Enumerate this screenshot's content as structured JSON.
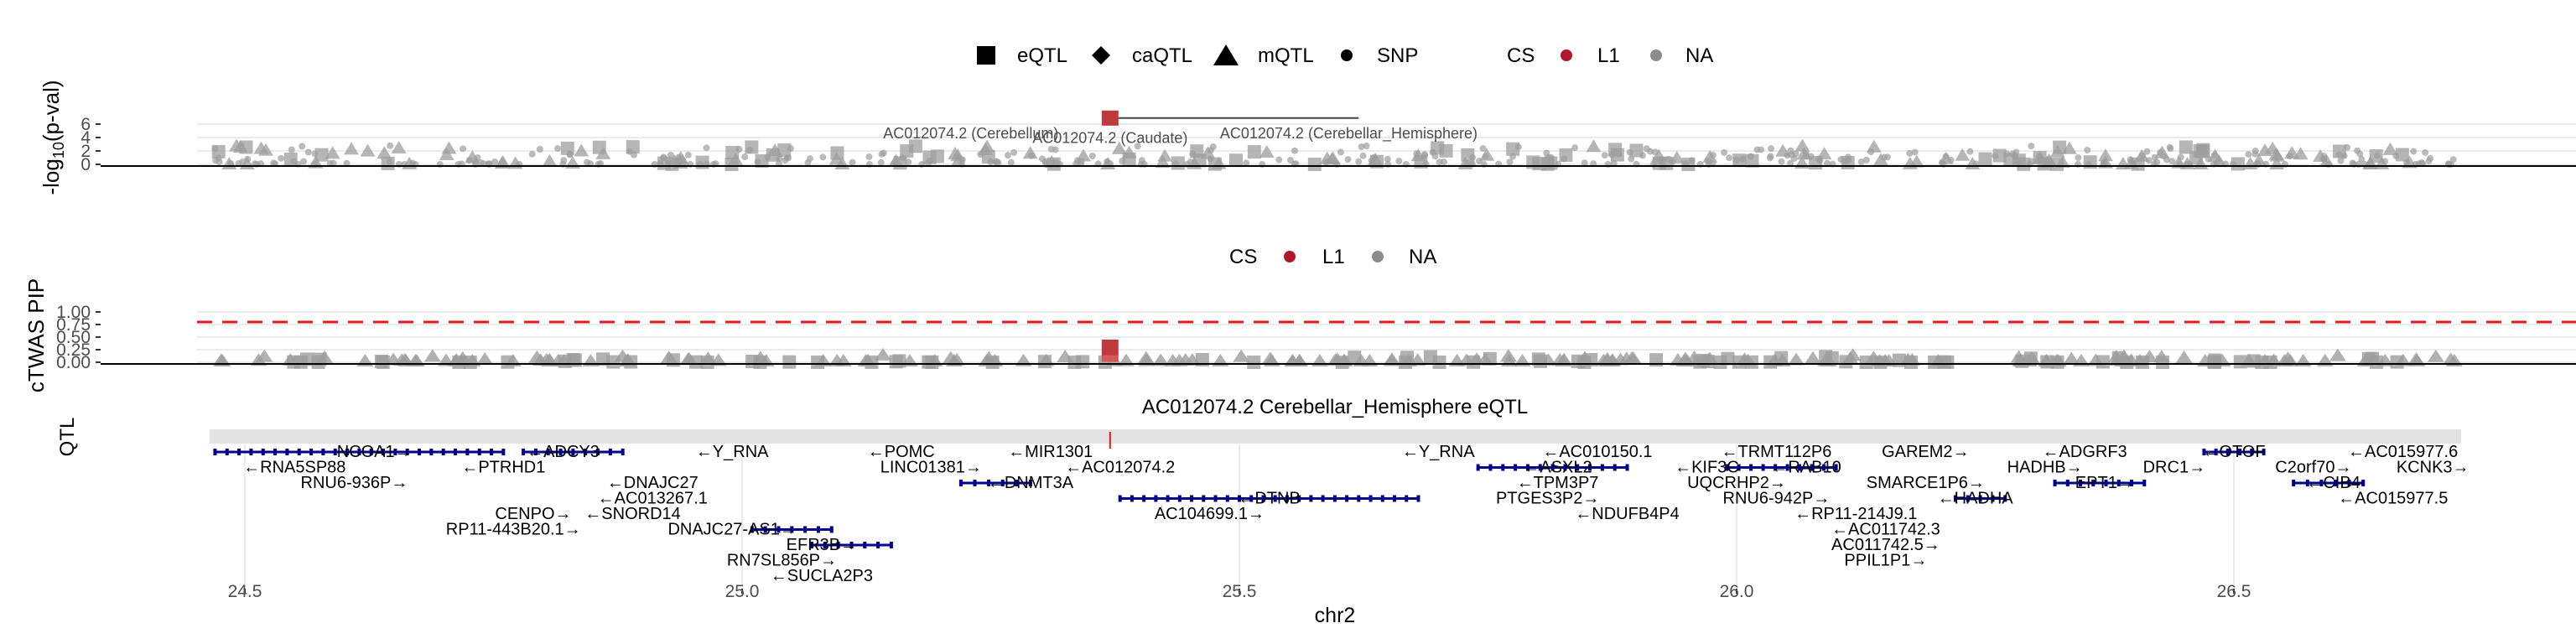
{
  "chart_data": [
    {
      "type": "scatter",
      "panel": "qtl",
      "ylabel_prefix": "-log",
      "ylabel_sub": "10",
      "ylabel_suffix": "(p-val)",
      "yticks": [
        "0",
        "2",
        "4",
        "6"
      ],
      "ylim": [
        0,
        7.5
      ],
      "xlim": [
        24.47,
        26.73
      ],
      "legend": {
        "placement": "top-center",
        "shape_title": "",
        "shape_items": [
          {
            "label": "eQTL",
            "shape": "square"
          },
          {
            "label": "caQTL",
            "shape": "diamond"
          },
          {
            "label": "mQTL",
            "shape": "triangle"
          },
          {
            "label": "SNP",
            "shape": "circle"
          }
        ],
        "color_title": "CS",
        "color_items": [
          {
            "label": "L1",
            "color": "#b2182b"
          },
          {
            "label": "NA",
            "color": "#8c8c8c"
          }
        ]
      },
      "highlight": {
        "x": 25.37,
        "y": 6.9,
        "shape": "square",
        "color": "#c0393b"
      },
      "annotations": [
        {
          "text": "AC012074.2 (Cerebellum)",
          "x": 25.23,
          "y": 5.9
        },
        {
          "text": "AC012074.2 (Caudate)",
          "x": 25.37,
          "y": 5.2
        },
        {
          "text": "AC012074.2 (Cerebellar_Hemisphere)",
          "x": 25.61,
          "y": 5.9
        }
      ],
      "connector": {
        "x1": 25.37,
        "x2": 25.62,
        "y": 6.9
      }
    },
    {
      "type": "scatter",
      "panel": "ctwas",
      "ylabel": "cTWAS PIP",
      "yticks": [
        "0.00",
        "0.25",
        "0.50",
        "0.75",
        "1.00"
      ],
      "ylim": [
        0,
        1.05
      ],
      "threshold": 0.8,
      "threshold_color": "#e31a1c",
      "legend": {
        "placement": "top-center",
        "title": "CS",
        "items": [
          {
            "label": "L1",
            "color": "#b2182b"
          },
          {
            "label": "NA",
            "color": "#8c8c8c"
          }
        ]
      },
      "highlight": {
        "x": 25.37,
        "y": 0.45,
        "color": "#c0393b"
      }
    },
    {
      "type": "gene_track",
      "panel": "genes",
      "title": "AC012074.2 Cerebellar_Hemisphere eQTL",
      "ylabel": "QTL",
      "xlabel": "chr2",
      "xticks": [
        24.5,
        25.0,
        25.5,
        26.0,
        26.5
      ],
      "xtick_labels": [
        "24.5",
        "25.0",
        "25.5",
        "26.0",
        "26.5"
      ],
      "highlight_gene_label": "AC012074.2",
      "genes": [
        {
          "label": "NCOA1→",
          "x": 24.63,
          "row": 0
        },
        {
          "label": "←RNA5SP88",
          "x": 24.55,
          "row": 1
        },
        {
          "label": "RNU6-936P→",
          "x": 24.61,
          "row": 2
        },
        {
          "label": "←ADCY3",
          "x": 24.82,
          "row": 0
        },
        {
          "label": "←PTRHD1",
          "x": 24.76,
          "row": 1
        },
        {
          "label": "←DNAJC27",
          "x": 24.91,
          "row": 2
        },
        {
          "label": "←AC013267.1",
          "x": 24.91,
          "row": 3
        },
        {
          "label": "CENPO→",
          "x": 24.79,
          "row": 4
        },
        {
          "label": "←SNORD14",
          "x": 24.89,
          "row": 4
        },
        {
          "label": "RP11-443B20.1→",
          "x": 24.77,
          "row": 5
        },
        {
          "label": "DNAJC27-AS1→",
          "x": 24.99,
          "row": 5
        },
        {
          "label": "EFR3B→",
          "x": 25.08,
          "row": 6
        },
        {
          "label": "RN7SL856P→",
          "x": 25.04,
          "row": 7
        },
        {
          "label": "←SUCLA2P3",
          "x": 25.08,
          "row": 8
        },
        {
          "label": "←Y_RNA",
          "x": 24.99,
          "row": 0
        },
        {
          "label": "←POMC",
          "x": 25.16,
          "row": 0
        },
        {
          "label": "LINC01381→",
          "x": 25.19,
          "row": 1
        },
        {
          "label": "←DNMT3A",
          "x": 25.29,
          "row": 2
        },
        {
          "label": "←MIR1301",
          "x": 25.31,
          "row": 0
        },
        {
          "label": "←AC012074.2",
          "x": 25.38,
          "row": 1
        },
        {
          "label": "←DTNB",
          "x": 25.53,
          "row": 3
        },
        {
          "label": "AC104699.1→",
          "x": 25.47,
          "row": 4
        },
        {
          "label": "←Y_RNA",
          "x": 25.7,
          "row": 0
        },
        {
          "label": "←AC010150.1",
          "x": 25.86,
          "row": 0
        },
        {
          "label": "←ASXL2",
          "x": 25.82,
          "row": 1
        },
        {
          "label": "←TPM3P7",
          "x": 25.82,
          "row": 2
        },
        {
          "label": "PTGES3P2→",
          "x": 25.81,
          "row": 3
        },
        {
          "label": "←NDUFB4P4",
          "x": 25.89,
          "row": 4
        },
        {
          "label": "←KIF3C",
          "x": 25.97,
          "row": 1
        },
        {
          "label": "←TRMT112P6",
          "x": 26.04,
          "row": 0
        },
        {
          "label": "←RAB10",
          "x": 26.07,
          "row": 1
        },
        {
          "label": "UQCRHP2→",
          "x": 26.0,
          "row": 2
        },
        {
          "label": "RNU6-942P→",
          "x": 26.04,
          "row": 3
        },
        {
          "label": "←RP11-214J9.1",
          "x": 26.12,
          "row": 4
        },
        {
          "label": "←AC011742.3",
          "x": 26.15,
          "row": 5
        },
        {
          "label": "AC011742.5→",
          "x": 26.15,
          "row": 6
        },
        {
          "label": "PPIL1P1→",
          "x": 26.15,
          "row": 7
        },
        {
          "label": "GAREM2→",
          "x": 26.19,
          "row": 0
        },
        {
          "label": "SMARCE1P6→",
          "x": 26.19,
          "row": 2
        },
        {
          "label": "←HADHA",
          "x": 26.24,
          "row": 3
        },
        {
          "label": "HADHB→",
          "x": 26.31,
          "row": 1
        },
        {
          "label": "←ADGRF3",
          "x": 26.35,
          "row": 0
        },
        {
          "label": "EPT1→",
          "x": 26.37,
          "row": 2
        },
        {
          "label": "DRC1→",
          "x": 26.44,
          "row": 1
        },
        {
          "label": "←OTOF",
          "x": 26.5,
          "row": 0
        },
        {
          "label": "C2orf70→",
          "x": 26.58,
          "row": 1
        },
        {
          "label": "←CIB4",
          "x": 26.6,
          "row": 2
        },
        {
          "label": "←AC015977.6",
          "x": 26.67,
          "row": 0
        },
        {
          "label": "KCNK3→",
          "x": 26.7,
          "row": 1
        },
        {
          "label": "←AC015977.5",
          "x": 26.66,
          "row": 3
        }
      ],
      "bars": [
        {
          "start": 24.47,
          "end": 24.76,
          "row": 0
        },
        {
          "start": 24.78,
          "end": 24.88,
          "row": 0
        },
        {
          "start": 25.01,
          "end": 25.09,
          "row": 5
        },
        {
          "start": 25.07,
          "end": 25.15,
          "row": 6
        },
        {
          "start": 25.22,
          "end": 25.29,
          "row": 2
        },
        {
          "start": 25.38,
          "end": 25.68,
          "row": 3
        },
        {
          "start": 25.74,
          "end": 25.89,
          "row": 1
        },
        {
          "start": 25.99,
          "end": 26.1,
          "row": 1
        },
        {
          "start": 26.22,
          "end": 26.27,
          "row": 3
        },
        {
          "start": 26.32,
          "end": 26.41,
          "row": 2
        },
        {
          "start": 26.47,
          "end": 26.53,
          "row": 0
        },
        {
          "start": 26.56,
          "end": 26.63,
          "row": 2
        }
      ]
    }
  ]
}
